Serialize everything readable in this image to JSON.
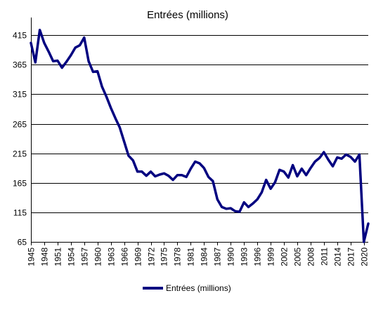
{
  "chart_data": {
    "type": "line",
    "title": "Entrées (millions)",
    "xlabel": "",
    "ylabel": "",
    "ylim": [
      65,
      445
    ],
    "yticks": [
      65,
      115,
      165,
      215,
      265,
      315,
      365,
      415
    ],
    "xlim": [
      1945,
      2021
    ],
    "xticks": [
      1945,
      1948,
      1951,
      1954,
      1957,
      1960,
      1963,
      1966,
      1969,
      1972,
      1975,
      1978,
      1981,
      1984,
      1987,
      1990,
      1993,
      1996,
      1999,
      2002,
      2005,
      2008,
      2011,
      2014,
      2017,
      2020
    ],
    "grid": "horizontal",
    "legend_position": "bottom",
    "color": "#000080",
    "series": [
      {
        "name": "Entrées (millions)",
        "x": [
          1945,
          1946,
          1947,
          1948,
          1949,
          1950,
          1951,
          1952,
          1953,
          1954,
          1955,
          1956,
          1957,
          1958,
          1959,
          1960,
          1961,
          1962,
          1963,
          1964,
          1965,
          1966,
          1967,
          1968,
          1969,
          1970,
          1971,
          1972,
          1973,
          1974,
          1975,
          1976,
          1977,
          1978,
          1979,
          1980,
          1981,
          1982,
          1983,
          1984,
          1985,
          1986,
          1987,
          1988,
          1989,
          1990,
          1991,
          1992,
          1993,
          1994,
          1995,
          1996,
          1997,
          1998,
          1999,
          2000,
          2001,
          2002,
          2003,
          2004,
          2005,
          2006,
          2007,
          2008,
          2009,
          2010,
          2011,
          2012,
          2013,
          2014,
          2015,
          2016,
          2017,
          2018,
          2019,
          2020,
          2021
        ],
        "values": [
          402,
          369,
          424,
          402,
          387,
          371,
          372,
          360,
          370,
          381,
          394,
          398,
          411,
          371,
          353,
          354,
          328,
          311,
          292,
          275,
          259,
          235,
          211,
          203,
          184,
          184,
          177,
          184,
          176,
          179,
          181,
          177,
          170,
          178,
          178,
          175,
          189,
          201,
          198,
          190,
          175,
          168,
          137,
          124,
          121,
          122,
          117,
          116,
          132,
          124,
          130,
          137,
          149,
          170,
          155,
          166,
          187,
          184,
          174,
          195,
          176,
          189,
          178,
          190,
          201,
          207,
          217,
          204,
          193,
          208,
          206,
          213,
          209,
          201,
          213,
          65,
          96
        ]
      }
    ]
  }
}
